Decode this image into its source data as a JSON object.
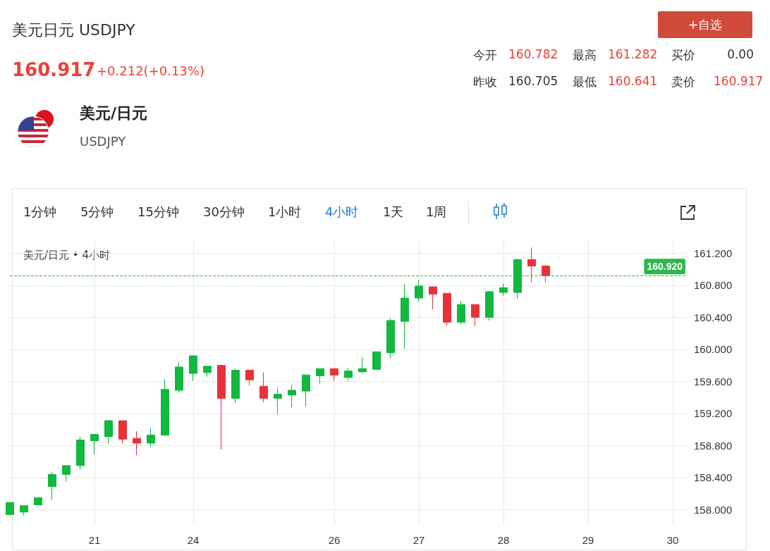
{
  "chart_data": {
    "type": "candlestick",
    "title": "美元日元 USDJPY",
    "annotations": [
      "160.917",
      "+0.212(+0.13%)",
      "今开",
      "160.782",
      "最高",
      "161.282",
      "买价",
      "0.00",
      "昨收",
      "160.705",
      "最低",
      "160.641",
      "卖价",
      "160.917",
      "美元/日元",
      "USDJPY",
      "+自选",
      "1分钟",
      "5分钟",
      "15分钟",
      "30分钟",
      "1小时",
      "4小时",
      "1天",
      "1周",
      "美元/日元 • 4小时"
    ],
    "categories": [
      null,
      null,
      null,
      null,
      null,
      null,
      "21",
      null,
      null,
      null,
      null,
      null,
      null,
      "24",
      null,
      null,
      null,
      null,
      null,
      null,
      null,
      null,
      null,
      "26",
      null,
      null,
      null,
      null,
      null,
      "27",
      null,
      null,
      null,
      null,
      null,
      "28",
      null,
      null,
      null,
      null,
      null,
      "29",
      null,
      null,
      null,
      null,
      null,
      "30",
      null
    ],
    "ohlc": [
      [
        157.94,
        158.09,
        157.93,
        158.09
      ],
      [
        157.97,
        158.05,
        157.93,
        158.05
      ],
      [
        158.06,
        158.15,
        158.06,
        158.15
      ],
      [
        158.29,
        158.47,
        158.12,
        158.44
      ],
      [
        158.44,
        158.55,
        158.35,
        158.55
      ],
      [
        158.55,
        158.91,
        158.5,
        158.87
      ],
      [
        158.86,
        158.94,
        158.69,
        158.94
      ],
      [
        158.91,
        159.12,
        158.82,
        159.11
      ],
      [
        159.11,
        159.11,
        158.83,
        158.88
      ],
      [
        158.89,
        158.98,
        158.68,
        158.83
      ],
      [
        158.83,
        159.02,
        158.78,
        158.93
      ],
      [
        158.93,
        159.63,
        158.93,
        159.5
      ],
      [
        159.49,
        159.84,
        159.46,
        159.78
      ],
      [
        159.7,
        159.93,
        159.61,
        159.92
      ],
      [
        159.71,
        159.79,
        159.66,
        159.79
      ],
      [
        159.8,
        159.81,
        158.75,
        159.39
      ],
      [
        159.39,
        159.76,
        159.33,
        159.74
      ],
      [
        159.74,
        159.74,
        159.55,
        159.62
      ],
      [
        159.54,
        159.71,
        159.34,
        159.39
      ],
      [
        159.39,
        159.52,
        159.19,
        159.44
      ],
      [
        159.43,
        159.56,
        159.28,
        159.49
      ],
      [
        159.48,
        159.68,
        159.29,
        159.68
      ],
      [
        159.67,
        159.76,
        159.57,
        159.76
      ],
      [
        159.76,
        159.76,
        159.61,
        159.68
      ],
      [
        159.65,
        159.77,
        159.61,
        159.73
      ],
      [
        159.72,
        159.9,
        159.7,
        159.76
      ],
      [
        159.75,
        159.97,
        159.75,
        159.97
      ],
      [
        159.96,
        160.39,
        159.89,
        160.36
      ],
      [
        160.35,
        160.82,
        160.01,
        160.64
      ],
      [
        160.64,
        160.87,
        160.6,
        160.79
      ],
      [
        160.78,
        160.78,
        160.5,
        160.69
      ],
      [
        160.7,
        160.7,
        160.3,
        160.34
      ],
      [
        160.34,
        160.6,
        160.31,
        160.56
      ],
      [
        160.56,
        160.56,
        160.29,
        160.4
      ],
      [
        160.4,
        160.73,
        160.36,
        160.72
      ],
      [
        160.71,
        160.82,
        160.67,
        160.77
      ],
      [
        160.71,
        161.13,
        160.63,
        161.12
      ],
      [
        161.12,
        161.27,
        160.84,
        161.04
      ],
      [
        161.04,
        161.05,
        160.84,
        160.92
      ],
      null,
      null,
      null,
      null,
      null,
      null,
      null,
      null,
      null,
      null
    ],
    "colors": [
      "#12b83f",
      "#12b83f",
      "#12b83f",
      "#12b83f",
      "#12b83f",
      "#12b83f",
      "#12b83f",
      "#12b83f",
      "#e8323a",
      "#e8323a",
      "#12b83f",
      "#12b83f",
      "#12b83f",
      "#12b83f",
      "#12b83f",
      "#e8323a",
      "#12b83f",
      "#e8323a",
      "#e8323a",
      "#12b83f",
      "#12b83f",
      "#12b83f",
      "#12b83f",
      "#e8323a",
      "#12b83f",
      "#12b83f",
      "#12b83f",
      "#12b83f",
      "#12b83f",
      "#12b83f",
      "#e8323a",
      "#e8323a",
      "#12b83f",
      "#e8323a",
      "#12b83f",
      "#12b83f",
      "#12b83f",
      "#e8323a",
      "#e8323a",
      null,
      null,
      null,
      null,
      null,
      null,
      null,
      null,
      null,
      null
    ],
    "ylim": [
      157.81,
      161.37
    ],
    "yticks": [
      {
        "value": 158,
        "label": "158.000"
      },
      {
        "value": 158.4,
        "label": "158.400"
      },
      {
        "value": 158.8,
        "label": "158.800"
      },
      {
        "value": 159.2,
        "label": "159.200"
      },
      {
        "value": 159.6,
        "label": "159.600"
      },
      {
        "value": 160,
        "label": "160.000"
      },
      {
        "value": 160.4,
        "label": "160.400"
      },
      {
        "value": 160.8,
        "label": "160.800"
      },
      {
        "value": 161.2,
        "label": "161.200"
      }
    ],
    "ref_lines": [
      {
        "axis": "y",
        "value": 160.92,
        "label": "160.920",
        "color": "#2db84d",
        "line_style": "dashed"
      }
    ],
    "grid": true
  }
}
